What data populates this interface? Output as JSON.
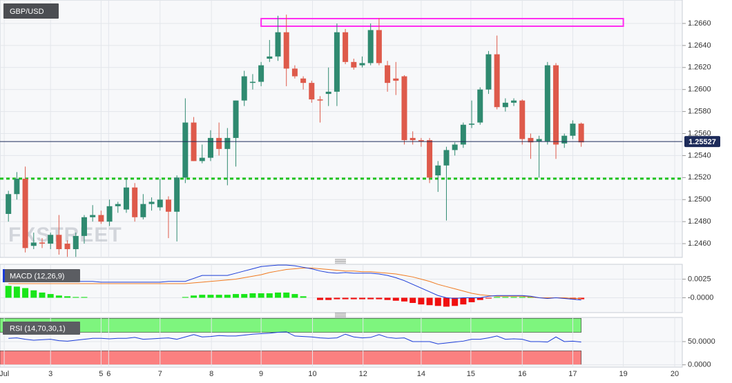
{
  "chart_data": [
    {
      "type": "candlestick",
      "title": "GBP/USD",
      "watermark": "FXSTREET",
      "open": [
        1.2487,
        1.2505,
        1.2519,
        1.2458,
        1.2461,
        1.246,
        1.2468,
        1.246,
        1.2455,
        1.2467,
        1.2484,
        1.2486,
        1.248,
        1.2494,
        1.2491,
        1.2511,
        1.2484,
        1.2496,
        1.2493,
        1.25,
        1.2489,
        1.252,
        1.257,
        1.2535,
        1.2538,
        1.2556,
        1.2546,
        1.2556,
        1.259,
        1.2606,
        1.2607,
        1.2628,
        1.263,
        1.2652,
        1.2619,
        1.261,
        1.2606,
        1.2591,
        1.2596,
        1.2598,
        1.2652,
        1.2625,
        1.2622,
        1.2624,
        1.2654,
        1.2622,
        1.261,
        1.2612,
        1.2556,
        1.2554,
        1.2554,
        1.2522,
        1.2531,
        1.2545,
        1.255,
        1.2568,
        1.257,
        1.26,
        1.2632,
        1.2584,
        1.2588,
        1.259,
        1.2556,
        1.2553,
        1.2553,
        1.2622,
        1.2551,
        1.2558,
        1.2569
      ],
      "high": [
        1.2508,
        1.2525,
        1.253,
        1.247,
        1.2465,
        1.247,
        1.2486,
        1.2463,
        1.247,
        1.2486,
        1.2495,
        1.249,
        1.25,
        1.2498,
        1.252,
        1.2515,
        1.2505,
        1.2502,
        1.2519,
        1.2503,
        1.2522,
        1.2592,
        1.2575,
        1.255,
        1.2563,
        1.257,
        1.2565,
        1.259,
        1.2617,
        1.2614,
        1.2625,
        1.2645,
        1.2667,
        1.2668,
        1.2622,
        1.2612,
        1.2608,
        1.2594,
        1.262,
        1.266,
        1.2655,
        1.2628,
        1.263,
        1.266,
        1.2665,
        1.2626,
        1.2625,
        1.2613,
        1.2562,
        1.2556,
        1.2556,
        1.2535,
        1.2548,
        1.2552,
        1.257,
        1.259,
        1.2602,
        1.2635,
        1.2649,
        1.2592,
        1.2592,
        1.2591,
        1.256,
        1.2558,
        1.2625,
        1.2624,
        1.256,
        1.2572,
        1.257
      ],
      "low": [
        1.248,
        1.25,
        1.2452,
        1.2455,
        1.2456,
        1.2455,
        1.245,
        1.2448,
        1.2448,
        1.246,
        1.248,
        1.2478,
        1.2476,
        1.2488,
        1.2488,
        1.248,
        1.2482,
        1.249,
        1.249,
        1.2465,
        1.2462,
        1.2515,
        1.2535,
        1.2533,
        1.2535,
        1.254,
        1.2513,
        1.253,
        1.2585,
        1.26,
        1.2603,
        1.2625,
        1.2626,
        1.2603,
        1.261,
        1.26,
        1.2588,
        1.257,
        1.2585,
        1.2585,
        1.2623,
        1.2618,
        1.262,
        1.2622,
        1.2622,
        1.2598,
        1.2595,
        1.255,
        1.255,
        1.2548,
        1.2515,
        1.2507,
        1.2481,
        1.254,
        1.2547,
        1.2565,
        1.2568,
        1.2596,
        1.2582,
        1.258,
        1.2585,
        1.255,
        1.2537,
        1.252,
        1.255,
        1.2537,
        1.2547,
        1.2555,
        1.2548
      ],
      "close": [
        1.2505,
        1.2519,
        1.2456,
        1.2461,
        1.246,
        1.2468,
        1.2455,
        1.2455,
        1.2467,
        1.2484,
        1.2486,
        1.248,
        1.2494,
        1.2496,
        1.2511,
        1.2484,
        1.2496,
        1.2498,
        1.25,
        1.2489,
        1.252,
        1.257,
        1.2535,
        1.2538,
        1.2556,
        1.2546,
        1.2556,
        1.259,
        1.2612,
        1.2607,
        1.2622,
        1.263,
        1.2652,
        1.2619,
        1.2612,
        1.2606,
        1.2591,
        1.259,
        1.2598,
        1.2652,
        1.2625,
        1.262,
        1.2624,
        1.2654,
        1.2624,
        1.2606,
        1.2608,
        1.2554,
        1.2554,
        1.2553,
        1.252,
        1.2531,
        1.2545,
        1.255,
        1.2568,
        1.2569,
        1.26,
        1.2632,
        1.2584,
        1.2588,
        1.259,
        1.2555,
        1.2552,
        1.2555,
        1.2622,
        1.255,
        1.2558,
        1.2569,
        1.2552
      ],
      "up_color": "#2f8a70",
      "down_color": "#de5a4b",
      "ylim": [
        1.24475,
        1.26813
      ],
      "yticks": [
        {
          "value": 1.246,
          "label": "1.2460"
        },
        {
          "value": 1.248,
          "label": "1.2480"
        },
        {
          "value": 1.25,
          "label": "1.2500"
        },
        {
          "value": 1.252,
          "label": "1.2520"
        },
        {
          "value": 1.254,
          "label": "1.2540"
        },
        {
          "value": 1.256,
          "label": "1.2560"
        },
        {
          "value": 1.258,
          "label": "1.2580"
        },
        {
          "value": 1.26,
          "label": "1.2600"
        },
        {
          "value": 1.262,
          "label": "1.2620"
        },
        {
          "value": 1.264,
          "label": "1.2640"
        },
        {
          "value": 1.266,
          "label": "1.2660"
        }
      ],
      "xlim": [
        -1,
        80
      ],
      "xticks": [
        {
          "value": -0.5,
          "label": "Jul"
        },
        {
          "value": 5,
          "label": "3"
        },
        {
          "value": 11,
          "label": "5"
        },
        {
          "value": 11.9,
          "label": "6"
        },
        {
          "value": 18,
          "label": "7"
        },
        {
          "value": 24.1,
          "label": "8"
        },
        {
          "value": 30,
          "label": "9"
        },
        {
          "value": 36.1,
          "label": "10"
        },
        {
          "value": 42.1,
          "label": "12"
        },
        {
          "value": 49,
          "label": "14"
        },
        {
          "value": 54.9,
          "label": "15"
        },
        {
          "value": 61,
          "label": "16"
        },
        {
          "value": 67,
          "label": "17"
        },
        {
          "value": 73,
          "label": "19"
        },
        {
          "value": 79.1,
          "label": "20"
        }
      ],
      "grid": true,
      "last_price": 1.25527,
      "last_price_color": "#1d2b5a",
      "resistance_zone": {
        "x": [
          30,
          73
        ],
        "y": [
          1.26575,
          1.26644
        ],
        "color": "#ff2bf0"
      },
      "support_level": {
        "value": 1.2519,
        "color": "#1fc41f"
      }
    },
    {
      "type": "macd",
      "title": "MACD (12,26,9)",
      "macd": [
        0.0022,
        0.0022,
        0.0022,
        0.0022,
        0.0022,
        0.0022,
        0.0022,
        0.0022,
        0.0022,
        0.0022,
        0.0022,
        0.0021,
        0.0021,
        0.0021,
        0.0021,
        0.0021,
        0.0021,
        0.0021,
        0.0021,
        0.0022,
        0.0022,
        0.0022,
        0.0026,
        0.003,
        0.003,
        0.003,
        0.003,
        0.0033,
        0.0036,
        0.0039,
        0.0042,
        0.0043,
        0.0044,
        0.0044,
        0.0043,
        0.0041,
        0.0039,
        0.0036,
        0.0034,
        0.0033,
        0.0034,
        0.0033,
        0.0033,
        0.0033,
        0.0032,
        0.003,
        0.0027,
        0.0023,
        0.0018,
        0.0013,
        0.0008,
        0.0003,
        0,
        -0.0001,
        0,
        0,
        0,
        0.0002,
        0.0003,
        0.0003,
        0.0003,
        0.0003,
        0.0002,
        0,
        -0.0001,
        0,
        -0.0001,
        -0.0002,
        -0.0003
      ],
      "signal": [
        0.0019,
        0.0019,
        0.0019,
        0.0019,
        0.0019,
        0.0019,
        0.0019,
        0.0019,
        0.0019,
        0.0019,
        0.0019,
        0.0019,
        0.0019,
        0.0019,
        0.0019,
        0.0019,
        0.0019,
        0.0019,
        0.0019,
        0.0019,
        0.0019,
        0.0019,
        0.002,
        0.0021,
        0.0022,
        0.0023,
        0.0024,
        0.0025,
        0.0027,
        0.0029,
        0.0031,
        0.0034,
        0.0036,
        0.0038,
        0.0039,
        0.004,
        0.004,
        0.0039,
        0.0038,
        0.0037,
        0.0036,
        0.0036,
        0.0035,
        0.0035,
        0.0034,
        0.0033,
        0.0032,
        0.003,
        0.0028,
        0.0025,
        0.0022,
        0.0018,
        0.0015,
        0.0012,
        0.0009,
        0.0006,
        0.0004,
        0.0003,
        0.0002,
        0.0002,
        0.0002,
        0.0002,
        0.0001,
        0,
        0,
        0,
        0,
        -0.0001,
        -0.0001
      ],
      "histogram": [
        0.0016,
        0.0015,
        0.0013,
        0.001,
        0.0007,
        0.0005,
        0.0003,
        0.0002,
        0.0001,
        0.0001,
        0,
        0,
        0,
        0,
        0,
        0,
        0,
        0,
        0,
        0,
        0,
        0.0001,
        0.0003,
        0.0004,
        0.0004,
        0.0004,
        0.0004,
        0.0005,
        0.0005,
        0.0006,
        0.0006,
        0.0006,
        0.0007,
        0.0007,
        0.0005,
        0.0002,
        0,
        -0.0003,
        -0.0003,
        -0.0002,
        -0.0002,
        -0.0002,
        -0.0002,
        -0.0002,
        -0.0002,
        -0.0003,
        -0.0004,
        -0.0005,
        -0.0007,
        -0.0009,
        -0.001,
        -0.0011,
        -0.0012,
        -0.0011,
        -0.0009,
        -0.0006,
        -0.0003,
        -0.0001,
        0.0001,
        0.0001,
        0.0001,
        0.0001,
        0.0001,
        0,
        -0.0001,
        0,
        -0.0001,
        -0.0002,
        -0.0002
      ],
      "macd_color": "#1a3bd8",
      "signal_color": "#f07a20",
      "up_color": "#19e619",
      "down_color": "#f01010",
      "ylim": [
        -0.002,
        0.0045
      ],
      "yticks": [
        {
          "value": 0.0025,
          "label": "0.0025"
        },
        {
          "value": 0,
          "label": "-0.0000"
        }
      ]
    },
    {
      "type": "rsi",
      "title": "RSI (14,70,30,1)",
      "values": [
        57,
        58,
        55,
        53,
        54,
        55,
        52,
        51,
        53,
        55,
        57,
        57,
        56,
        57,
        57,
        59,
        55,
        56,
        57,
        58,
        55,
        60,
        65,
        60,
        61,
        63,
        62,
        62,
        64,
        66,
        67,
        68,
        70,
        71,
        62,
        61,
        60,
        58,
        57,
        58,
        66,
        60,
        58,
        59,
        65,
        59,
        57,
        58,
        50,
        50,
        50,
        45,
        47,
        49,
        51,
        55,
        55,
        58,
        62,
        55,
        56,
        55,
        50,
        50,
        49,
        60,
        50,
        51,
        49
      ],
      "color": "#1a3bd8",
      "bands": [
        {
          "range": [
            70,
            100
          ],
          "color": "#7ef57e"
        },
        {
          "range": [
            0,
            30
          ],
          "color": "#fb8080"
        }
      ],
      "ylim": [
        -5,
        102
      ],
      "yticks": [
        {
          "value": 50,
          "label": "50.0000"
        },
        {
          "value": 0,
          "label": "0.0000"
        }
      ]
    }
  ]
}
